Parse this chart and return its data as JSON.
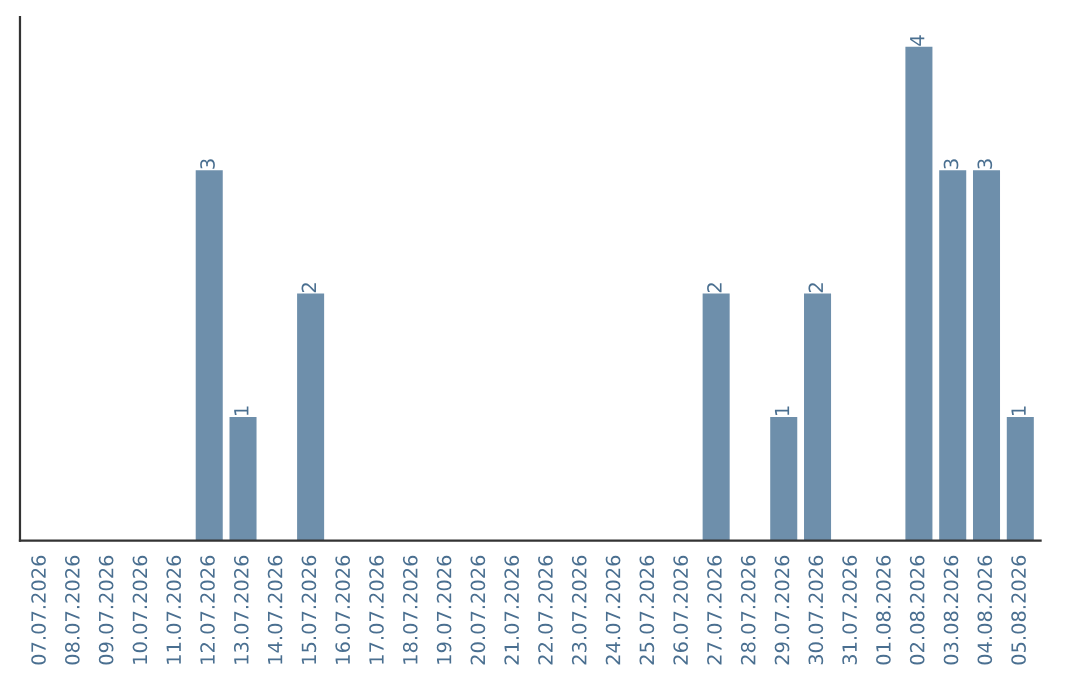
{
  "chart_data": {
    "type": "bar",
    "categories": [
      "07.07.2026",
      "08.07.2026",
      "09.07.2026",
      "10.07.2026",
      "11.07.2026",
      "12.07.2026",
      "13.07.2026",
      "14.07.2026",
      "15.07.2026",
      "16.07.2026",
      "17.07.2026",
      "18.07.2026",
      "19.07.2026",
      "20.07.2026",
      "21.07.2026",
      "22.07.2026",
      "23.07.2026",
      "24.07.2026",
      "25.07.2026",
      "26.07.2026",
      "27.07.2026",
      "28.07.2026",
      "29.07.2026",
      "30.07.2026",
      "31.07.2026",
      "01.08.2026",
      "02.08.2026",
      "03.08.2026",
      "04.08.2026",
      "05.08.2026"
    ],
    "values": [
      0,
      0,
      0,
      0,
      0,
      3,
      1,
      0,
      2,
      0,
      0,
      0,
      0,
      0,
      0,
      0,
      0,
      0,
      0,
      0,
      2,
      0,
      1,
      2,
      0,
      0,
      4,
      3,
      3,
      1
    ],
    "value_labels": [
      null,
      null,
      null,
      null,
      null,
      "3",
      "1",
      null,
      "2",
      null,
      null,
      null,
      null,
      null,
      null,
      null,
      null,
      null,
      null,
      null,
      "2",
      null,
      "1",
      "2",
      null,
      null,
      "4",
      "3",
      "3",
      "1"
    ],
    "color": "#6e8fab",
    "grid": false,
    "legend": false,
    "tick_labels": "x"
  }
}
